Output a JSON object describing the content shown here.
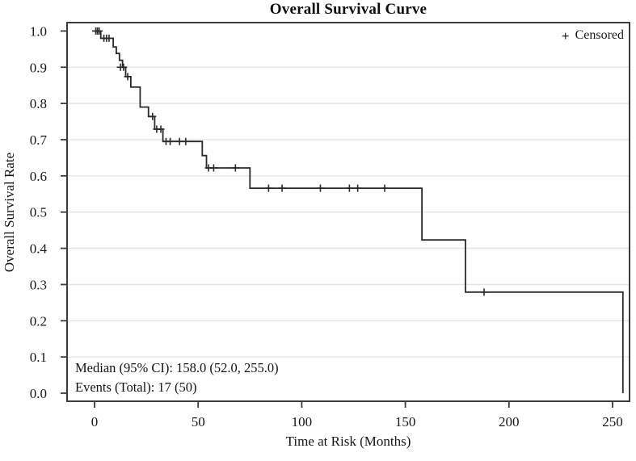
{
  "figure": {
    "legend": {
      "marker": "+",
      "label": "Censored"
    },
    "annotation_lines": [
      "Median (95% CI): 158.0 (52.0, 255.0)",
      "Events (Total): 17 (50)"
    ]
  },
  "chart_data": {
    "type": "line",
    "subtype": "kaplan_meier_step",
    "title": "Overall Survival Curve",
    "xlabel": "Time at Risk (Months)",
    "ylabel": "Overall Survival Rate",
    "xlim": [
      0,
      258
    ],
    "ylim": [
      0.0,
      1.0
    ],
    "xticks": [
      0,
      50,
      100,
      150,
      200,
      250
    ],
    "yticks": [
      0.0,
      0.1,
      0.2,
      0.3,
      0.4,
      0.5,
      0.6,
      0.7,
      0.8,
      0.9,
      1.0
    ],
    "grid": "horizontal",
    "legend_position": "top-right-inside",
    "colors": {
      "curve": "#2a2a2a",
      "frame": "#3b3b3b",
      "grid": "#e3e3e3",
      "text": "#161616"
    },
    "series": [
      {
        "name": "Overall Survival",
        "draw": "step-post",
        "points": [
          [
            0,
            1.0
          ],
          [
            3,
            0.98
          ],
          [
            9,
            0.956
          ],
          [
            10.5,
            0.938
          ],
          [
            12,
            0.919
          ],
          [
            13.5,
            0.9
          ],
          [
            15,
            0.874
          ],
          [
            17.5,
            0.845
          ],
          [
            22,
            0.79
          ],
          [
            26,
            0.764
          ],
          [
            29,
            0.729
          ],
          [
            33,
            0.695
          ],
          [
            52,
            0.656
          ],
          [
            54,
            0.622
          ],
          [
            75,
            0.566
          ],
          [
            158,
            0.423
          ],
          [
            179,
            0.279
          ],
          [
            255,
            0.0
          ]
        ]
      }
    ],
    "censored_marks": [
      [
        0.6,
        1.0
      ],
      [
        1.4,
        1.0
      ],
      [
        2.2,
        1.0
      ],
      [
        4.5,
        0.98
      ],
      [
        5.8,
        0.98
      ],
      [
        7.0,
        0.98
      ],
      [
        12.5,
        0.9
      ],
      [
        14.0,
        0.9
      ],
      [
        16,
        0.874
      ],
      [
        28,
        0.764
      ],
      [
        30,
        0.729
      ],
      [
        32,
        0.729
      ],
      [
        34.5,
        0.695
      ],
      [
        36.5,
        0.695
      ],
      [
        41,
        0.695
      ],
      [
        44,
        0.695
      ],
      [
        55,
        0.622
      ],
      [
        57.5,
        0.622
      ],
      [
        68,
        0.622
      ],
      [
        84,
        0.566
      ],
      [
        90.5,
        0.566
      ],
      [
        109,
        0.566
      ],
      [
        123,
        0.566
      ],
      [
        127,
        0.566
      ],
      [
        140,
        0.566
      ],
      [
        188,
        0.279
      ]
    ],
    "stats": {
      "median": 158.0,
      "ci95_low": 52.0,
      "ci95_high": 255.0,
      "events": 17,
      "total": 50
    }
  }
}
